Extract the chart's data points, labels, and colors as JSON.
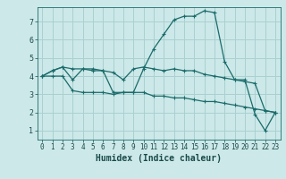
{
  "title": "",
  "xlabel": "Humidex (Indice chaleur)",
  "ylabel": "",
  "bg_color": "#cce8e8",
  "grid_color": "#aad0d0",
  "line_color": "#1a6b6b",
  "x_ticks": [
    0,
    1,
    2,
    3,
    4,
    5,
    6,
    7,
    8,
    9,
    10,
    11,
    12,
    13,
    14,
    15,
    16,
    17,
    18,
    19,
    20,
    21,
    22,
    23
  ],
  "y_ticks": [
    1,
    2,
    3,
    4,
    5,
    6,
    7
  ],
  "ylim": [
    0.5,
    7.8
  ],
  "xlim": [
    -0.5,
    23.5
  ],
  "line1_x": [
    0,
    1,
    2,
    3,
    4,
    5,
    6,
    7,
    8,
    9,
    10,
    11,
    12,
    13,
    14,
    15,
    16,
    17,
    18,
    19,
    20,
    21,
    22,
    23
  ],
  "line1_y": [
    4.0,
    4.3,
    4.5,
    3.8,
    4.4,
    4.3,
    4.3,
    3.1,
    3.1,
    3.1,
    4.4,
    5.5,
    6.3,
    7.1,
    7.3,
    7.3,
    7.6,
    7.5,
    4.8,
    3.8,
    3.8,
    1.9,
    1.0,
    2.0
  ],
  "line2_x": [
    0,
    1,
    2,
    3,
    4,
    5,
    6,
    7,
    8,
    9,
    10,
    11,
    12,
    13,
    14,
    15,
    16,
    17,
    18,
    19,
    20,
    21,
    22,
    23
  ],
  "line2_y": [
    4.0,
    4.3,
    4.5,
    4.4,
    4.4,
    4.4,
    4.3,
    4.2,
    3.8,
    4.4,
    4.5,
    4.4,
    4.3,
    4.4,
    4.3,
    4.3,
    4.1,
    4.0,
    3.9,
    3.8,
    3.7,
    3.6,
    2.1,
    2.0
  ],
  "line3_x": [
    0,
    1,
    2,
    3,
    4,
    5,
    6,
    7,
    8,
    9,
    10,
    11,
    12,
    13,
    14,
    15,
    16,
    17,
    18,
    19,
    20,
    21,
    22,
    23
  ],
  "line3_y": [
    4.0,
    4.0,
    4.0,
    3.2,
    3.1,
    3.1,
    3.1,
    3.0,
    3.1,
    3.1,
    3.1,
    2.9,
    2.9,
    2.8,
    2.8,
    2.7,
    2.6,
    2.6,
    2.5,
    2.4,
    2.3,
    2.2,
    2.1,
    2.0
  ],
  "tick_fontsize": 5.5,
  "xlabel_fontsize": 7.0
}
